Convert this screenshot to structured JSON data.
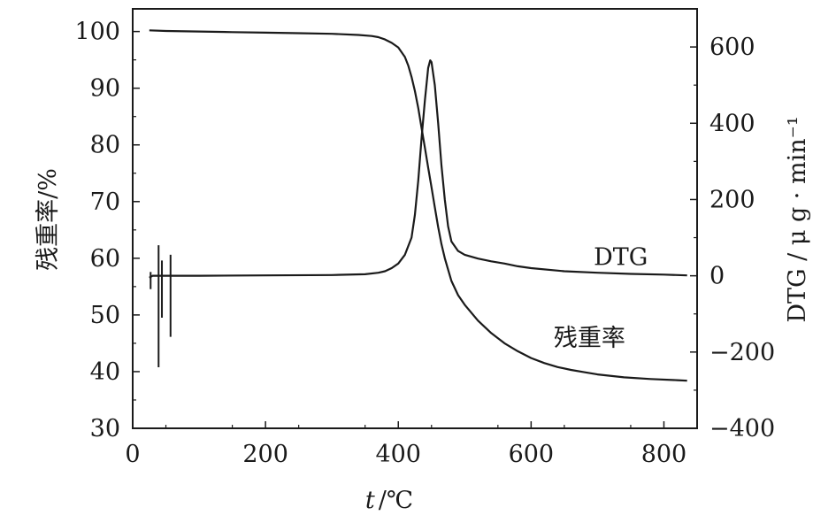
{
  "chart_data": {
    "type": "line",
    "xlabel_var": "t",
    "xlabel_unit": "/℃",
    "ylabel_left": "残重率/%",
    "ylabel_right": "DTG / μ g · min⁻¹",
    "xlim": [
      0,
      850
    ],
    "ylim_left": [
      30,
      104
    ],
    "ylim_right": [
      -400,
      700
    ],
    "x_ticks": [
      0,
      200,
      400,
      600,
      800
    ],
    "y_left_ticks": [
      30,
      40,
      50,
      60,
      70,
      80,
      90,
      100
    ],
    "y_right_ticks": [
      -400,
      -200,
      0,
      200,
      400,
      600
    ],
    "grid": false,
    "series": [
      {
        "name": "残重率",
        "axis": "left",
        "x": [
          25,
          50,
          100,
          150,
          200,
          250,
          300,
          340,
          360,
          370,
          380,
          390,
          400,
          410,
          415,
          420,
          425,
          430,
          435,
          440,
          445,
          450,
          455,
          460,
          465,
          470,
          475,
          480,
          490,
          500,
          520,
          540,
          560,
          580,
          600,
          620,
          640,
          660,
          680,
          700,
          740,
          780,
          820,
          835
        ],
        "y": [
          100.2,
          100.1,
          100.0,
          99.9,
          99.8,
          99.7,
          99.6,
          99.4,
          99.2,
          99.0,
          98.6,
          98.0,
          97.2,
          95.5,
          94.0,
          92.0,
          89.5,
          86.5,
          83.0,
          79.5,
          76.0,
          72.5,
          69.0,
          65.5,
          62.5,
          60.0,
          58.0,
          56.0,
          53.5,
          51.8,
          49.0,
          46.8,
          45.0,
          43.6,
          42.4,
          41.5,
          40.8,
          40.3,
          39.9,
          39.5,
          39.0,
          38.7,
          38.5,
          38.4
        ]
      },
      {
        "name": "DTG",
        "axis": "right",
        "x": [
          25,
          30,
          40,
          50,
          60,
          100,
          200,
          300,
          350,
          370,
          380,
          390,
          400,
          410,
          420,
          425,
          430,
          435,
          440,
          445,
          448,
          450,
          455,
          460,
          465,
          470,
          475,
          480,
          490,
          500,
          520,
          540,
          560,
          580,
          600,
          650,
          700,
          750,
          800,
          835
        ],
        "y": [
          -5,
          0,
          0,
          0,
          0,
          0,
          1,
          2,
          4,
          8,
          12,
          20,
          32,
          55,
          100,
          160,
          250,
          360,
          460,
          545,
          565,
          560,
          500,
          400,
          290,
          200,
          130,
          90,
          65,
          55,
          45,
          38,
          32,
          25,
          20,
          12,
          8,
          5,
          3,
          1
        ]
      }
    ],
    "spikes": [
      {
        "x": 27,
        "low": -35,
        "high": 10
      },
      {
        "x": 39,
        "low": -240,
        "high": 80
      },
      {
        "x": 44,
        "low": -110,
        "high": 40
      },
      {
        "x": 57,
        "low": -160,
        "high": 55
      }
    ],
    "annotations": [
      {
        "text": "DTG",
        "x": 735,
        "y": 28,
        "axis": "right"
      },
      {
        "text": "残重率",
        "x": 688,
        "y": 44.5,
        "axis": "left"
      }
    ]
  }
}
